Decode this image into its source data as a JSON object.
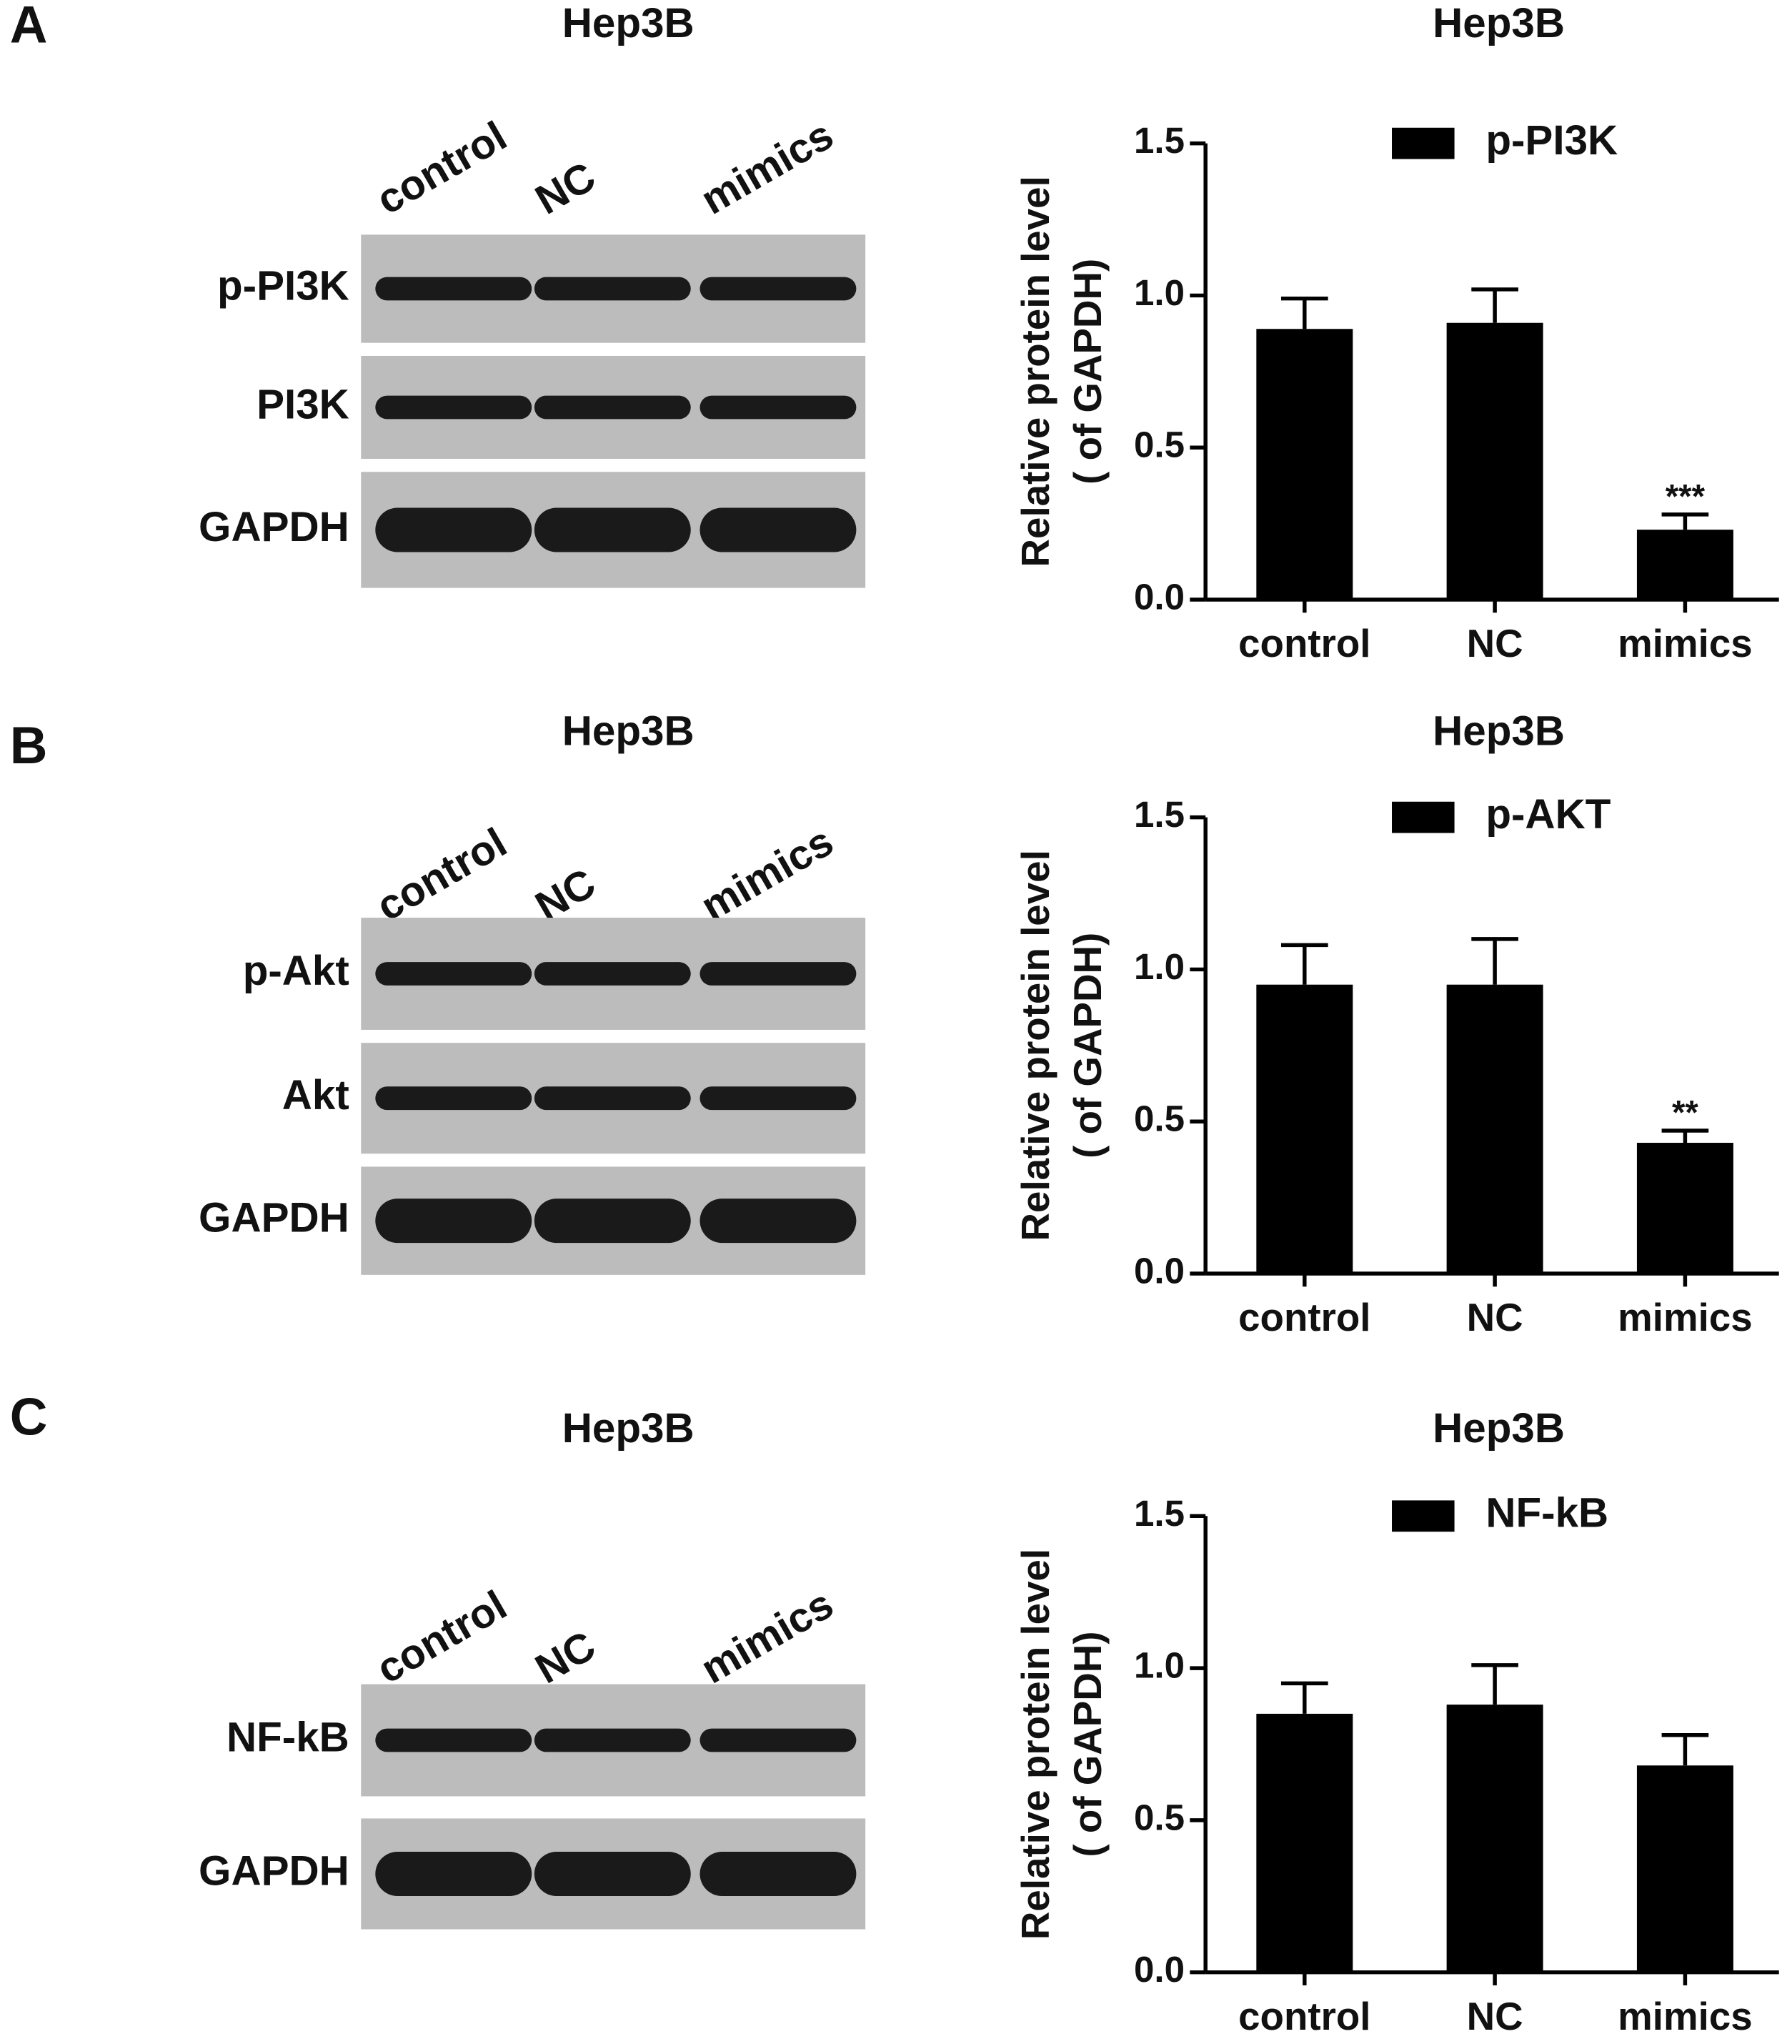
{
  "panels": [
    {
      "label": "A",
      "title": "Hep3B",
      "lanes": [
        "control",
        "NC",
        "mimics"
      ],
      "rows": [
        "p-PI3K",
        "PI3K",
        "GAPDH"
      ]
    },
    {
      "label": "B",
      "title": "Hep3B",
      "lanes": [
        "control",
        "NC",
        "mimics"
      ],
      "rows": [
        "p-Akt",
        "Akt",
        "GAPDH"
      ]
    },
    {
      "label": "C",
      "title": "Hep3B",
      "lanes": [
        "control",
        "NC",
        "mimics"
      ],
      "rows": [
        "NF-kB",
        "GAPDH"
      ]
    }
  ],
  "chart_data": [
    {
      "type": "bar",
      "title": "Hep3B",
      "ylabel": [
        "Relative protein level",
        "( of GAPDH)"
      ],
      "categories": [
        "control",
        "NC",
        "mimics"
      ],
      "series": [
        {
          "name": "p-PI3K",
          "color": "#000000",
          "values": [
            0.89,
            0.91,
            0.23
          ],
          "errors": [
            0.1,
            0.11,
            0.05
          ],
          "significance": [
            null,
            null,
            "***"
          ]
        }
      ],
      "ylim": [
        0,
        1.5
      ],
      "yticks": [
        {
          "value": 0,
          "label": "0.0"
        },
        {
          "value": 0.5,
          "label": "0.5"
        },
        {
          "value": 1,
          "label": "1.0"
        },
        {
          "value": 1.5,
          "label": "1.5"
        }
      ]
    },
    {
      "type": "bar",
      "title": "Hep3B",
      "ylabel": [
        "Relative protein level",
        "( of GAPDH)"
      ],
      "categories": [
        "control",
        "NC",
        "mimics"
      ],
      "series": [
        {
          "name": "p-AKT",
          "color": "#000000",
          "values": [
            0.95,
            0.95,
            0.43
          ],
          "errors": [
            0.13,
            0.15,
            0.04
          ],
          "significance": [
            null,
            null,
            "**"
          ]
        }
      ],
      "ylim": [
        0,
        1.5
      ],
      "yticks": [
        {
          "value": 0,
          "label": "0.0"
        },
        {
          "value": 0.5,
          "label": "0.5"
        },
        {
          "value": 1,
          "label": "1.0"
        },
        {
          "value": 1.5,
          "label": "1.5"
        }
      ]
    },
    {
      "type": "bar",
      "title": "Hep3B",
      "ylabel": [
        "Relative protein level",
        "( of GAPDH)"
      ],
      "categories": [
        "control",
        "NC",
        "mimics"
      ],
      "series": [
        {
          "name": "NF-kB",
          "color": "#000000",
          "values": [
            0.85,
            0.88,
            0.68
          ],
          "errors": [
            0.1,
            0.13,
            0.1
          ],
          "significance": [
            null,
            null,
            null
          ]
        }
      ],
      "ylim": [
        0,
        1.5
      ],
      "yticks": [
        {
          "value": 0,
          "label": "0.0"
        },
        {
          "value": 0.5,
          "label": "0.5"
        },
        {
          "value": 1,
          "label": "1.0"
        },
        {
          "value": 1.5,
          "label": "1.5"
        }
      ]
    }
  ]
}
